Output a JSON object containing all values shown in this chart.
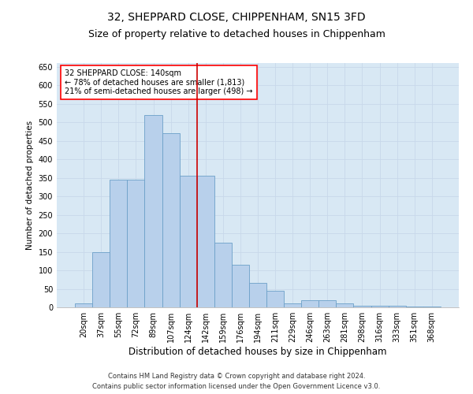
{
  "title": "32, SHEPPARD CLOSE, CHIPPENHAM, SN15 3FD",
  "subtitle": "Size of property relative to detached houses in Chippenham",
  "xlabel": "Distribution of detached houses by size in Chippenham",
  "ylabel": "Number of detached properties",
  "categories": [
    "20sqm",
    "37sqm",
    "55sqm",
    "72sqm",
    "89sqm",
    "107sqm",
    "124sqm",
    "142sqm",
    "159sqm",
    "176sqm",
    "194sqm",
    "211sqm",
    "229sqm",
    "246sqm",
    "263sqm",
    "281sqm",
    "298sqm",
    "316sqm",
    "333sqm",
    "351sqm",
    "368sqm"
  ],
  "values": [
    10,
    150,
    345,
    345,
    520,
    470,
    355,
    355,
    175,
    115,
    65,
    45,
    10,
    20,
    20,
    10,
    5,
    5,
    5,
    2,
    2
  ],
  "bar_color": "#b8d0eb",
  "bar_edge_color": "#6ca0c8",
  "red_line_index": 7,
  "annotation_line1": "32 SHEPPARD CLOSE: 140sqm",
  "annotation_line2": "← 78% of detached houses are smaller (1,813)",
  "annotation_line3": "21% of semi-detached houses are larger (498) →",
  "annotation_box_color": "white",
  "annotation_box_edge_color": "red",
  "red_line_color": "#cc0000",
  "ylim": [
    0,
    660
  ],
  "yticks": [
    0,
    50,
    100,
    150,
    200,
    250,
    300,
    350,
    400,
    450,
    500,
    550,
    600,
    650
  ],
  "grid_color": "#c8d8ea",
  "background_color": "#d8e8f4",
  "footer_line1": "Contains HM Land Registry data © Crown copyright and database right 2024.",
  "footer_line2": "Contains public sector information licensed under the Open Government Licence v3.0.",
  "title_fontsize": 10,
  "subtitle_fontsize": 9,
  "xlabel_fontsize": 8.5,
  "ylabel_fontsize": 7.5,
  "tick_fontsize": 7,
  "footer_fontsize": 6,
  "annotation_fontsize": 7
}
